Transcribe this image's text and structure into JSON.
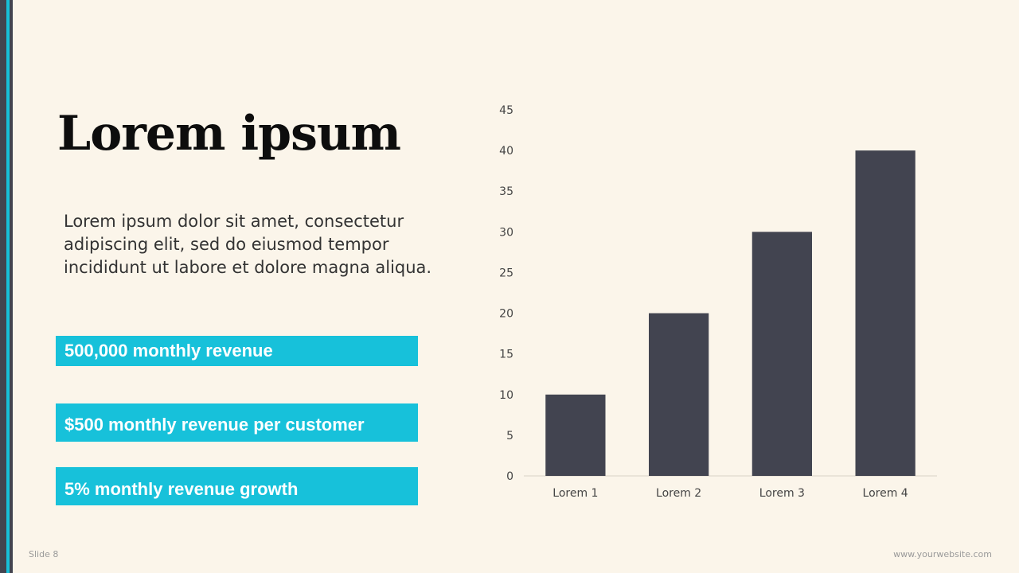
{
  "slide": {
    "title": "Lorem ipsum",
    "body": "Lorem ipsum dolor sit amet, consectetur adipiscing elit, sed do eiusmod tempor incididunt ut labore et dolore magna aliqua.",
    "stats": [
      "500,000 monthly revenue",
      "$500 monthly revenue per customer",
      "5% monthly revenue growth"
    ],
    "footer_left": "Slide 8",
    "footer_right": "www.yourwebsite.com"
  },
  "colors": {
    "background": "#fbf5ea",
    "accent": "#17c1da",
    "bar": "#424450",
    "edge_dark": "#424450",
    "edge_accent": "#17bfd9"
  },
  "chart_data": {
    "type": "bar",
    "categories": [
      "Lorem 1",
      "Lorem 2",
      "Lorem 3",
      "Lorem 4"
    ],
    "values": [
      10,
      20,
      30,
      40
    ],
    "ylim": [
      0,
      45
    ],
    "yticks": [
      0,
      5,
      10,
      15,
      20,
      25,
      30,
      35,
      40,
      45
    ],
    "grid": false,
    "legend": "none"
  }
}
